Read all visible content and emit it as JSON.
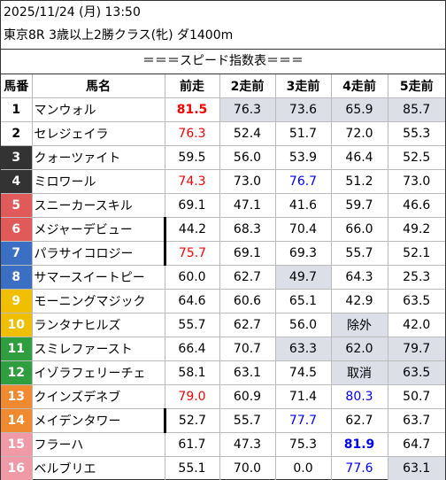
{
  "header": {
    "datetime": "2025/11/24 (月) 13:50",
    "race": "東京8R 3歳以上2勝クラス(牝) ダ1400m"
  },
  "table_title": "＝＝＝スピード指数表＝＝＝",
  "columns": [
    "馬番",
    "馬名",
    "前走",
    "2走前",
    "3走前",
    "4走前",
    "5走前"
  ],
  "colors": {
    "gate1": "#ffffff",
    "gate2": "#ffffff",
    "gate3": "#333333",
    "gate4": "#333333",
    "gate5": "#e05a5a",
    "gate6": "#e05a5a",
    "gate7": "#3b6fc4",
    "gate8": "#3b6fc4",
    "gate9": "#f0c000",
    "gate10": "#f0c000",
    "gate11": "#2e9e3e",
    "gate12": "#2e9e3e",
    "gate13": "#f08a30",
    "gate14": "#f08a30",
    "gate15": "#f09aa8",
    "gate16": "#f09aa8",
    "gray_cell": "#dcdfe8",
    "red_text": "#ff0000",
    "blue_text": "#0000ff"
  },
  "rows": [
    {
      "no": "1",
      "name": "マンウォル",
      "mark": false,
      "vals": [
        "81.5",
        "76.3",
        "73.6",
        "65.9",
        "85.7"
      ]
    },
    {
      "no": "2",
      "name": "セレジェイラ",
      "mark": false,
      "vals": [
        "76.3",
        "52.4",
        "51.7",
        "72.0",
        "55.3"
      ]
    },
    {
      "no": "3",
      "name": "クォーツァイト",
      "mark": false,
      "vals": [
        "59.5",
        "56.0",
        "53.9",
        "46.4",
        "52.5"
      ]
    },
    {
      "no": "4",
      "name": "ミロワール",
      "mark": false,
      "vals": [
        "74.3",
        "73.0",
        "76.7",
        "51.2",
        "73.0"
      ]
    },
    {
      "no": "5",
      "name": "スニーカースキル",
      "mark": false,
      "vals": [
        "69.1",
        "47.1",
        "41.6",
        "59.7",
        "46.6"
      ]
    },
    {
      "no": "6",
      "name": "メジャーデビュー",
      "mark": true,
      "vals": [
        "44.2",
        "68.3",
        "70.4",
        "66.0",
        "49.2"
      ]
    },
    {
      "no": "7",
      "name": "パラサイコロジー",
      "mark": true,
      "vals": [
        "75.7",
        "69.1",
        "69.3",
        "55.7",
        "52.1"
      ]
    },
    {
      "no": "8",
      "name": "サマースイートピー",
      "mark": false,
      "vals": [
        "60.0",
        "62.7",
        "49.7",
        "64.3",
        "25.3"
      ]
    },
    {
      "no": "9",
      "name": "モーニングマジック",
      "mark": false,
      "vals": [
        "64.6",
        "60.6",
        "65.1",
        "42.9",
        "63.5"
      ]
    },
    {
      "no": "10",
      "name": "ランタナヒルズ",
      "mark": false,
      "vals": [
        "55.7",
        "62.7",
        "56.0",
        "除外",
        "42.0"
      ]
    },
    {
      "no": "11",
      "name": "スミレファースト",
      "mark": false,
      "vals": [
        "66.4",
        "70.7",
        "63.3",
        "62.0",
        "79.7"
      ]
    },
    {
      "no": "12",
      "name": "イゾラフェリーチェ",
      "mark": false,
      "vals": [
        "58.1",
        "63.1",
        "74.5",
        "取消",
        "63.5"
      ]
    },
    {
      "no": "13",
      "name": "クインズデネブ",
      "mark": false,
      "vals": [
        "79.0",
        "60.9",
        "71.4",
        "80.3",
        "50.7"
      ]
    },
    {
      "no": "14",
      "name": "メイデンタワー",
      "mark": true,
      "vals": [
        "52.7",
        "55.7",
        "77.7",
        "62.7",
        "63.7"
      ]
    },
    {
      "no": "15",
      "name": "フラーハ",
      "mark": false,
      "vals": [
        "61.7",
        "47.3",
        "75.3",
        "81.9",
        "64.7"
      ]
    },
    {
      "no": "16",
      "name": "ベルブリエ",
      "mark": false,
      "vals": [
        "55.1",
        "70.0",
        "0.0",
        "77.6",
        "63.1"
      ]
    }
  ]
}
